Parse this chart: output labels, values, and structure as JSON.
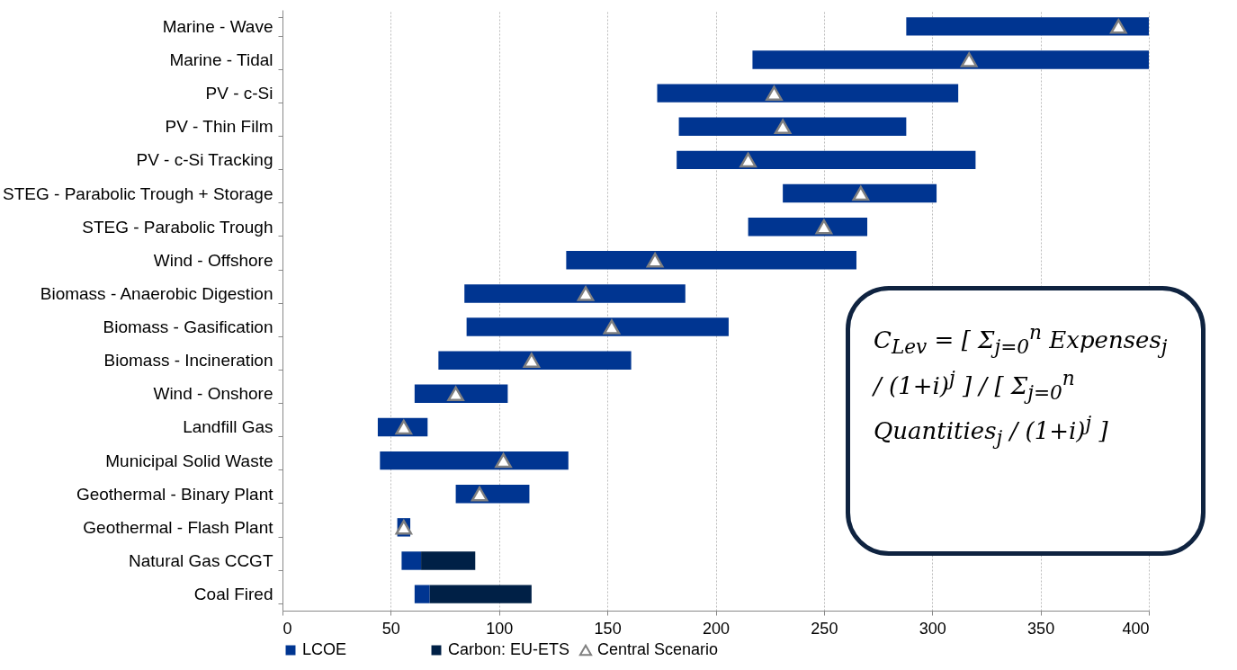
{
  "chart_data": {
    "type": "bar",
    "orientation": "horizontal",
    "categories": [
      "Marine - Wave",
      "Marine - Tidal",
      "PV - c-Si",
      "PV - Thin Film",
      "PV - c-Si Tracking",
      "STEG - Parabolic Trough + Storage",
      "STEG - Parabolic Trough",
      "Wind - Offshore",
      "Biomass - Anaerobic Digestion",
      "Biomass - Gasification",
      "Biomass - Incineration",
      "Wind - Onshore",
      "Landfill Gas",
      "Municipal Solid Waste",
      "Geothermal - Binary Plant",
      "Geothermal - Flash Plant",
      "Natural Gas CCGT",
      "Coal Fired"
    ],
    "series": [
      {
        "name": "LCOE",
        "color": "#003591",
        "base": [
          288,
          217,
          173,
          183,
          182,
          231,
          215,
          131,
          84,
          85,
          72,
          61,
          44,
          45,
          80,
          53,
          55,
          61
        ],
        "values": [
          112,
          183,
          139,
          105,
          138,
          71,
          55,
          134,
          102,
          121,
          89,
          43,
          23,
          87,
          34,
          6,
          9,
          7
        ]
      },
      {
        "name": "Carbon: EU-ETS",
        "color": "#002046",
        "base": [
          null,
          null,
          null,
          null,
          null,
          null,
          null,
          null,
          null,
          null,
          null,
          null,
          null,
          null,
          null,
          null,
          64,
          68
        ],
        "values": [
          null,
          null,
          null,
          null,
          null,
          null,
          null,
          null,
          null,
          null,
          null,
          null,
          null,
          null,
          null,
          null,
          25,
          47
        ]
      },
      {
        "name": "Central Scenario",
        "type": "scatter",
        "marker": "triangle",
        "color": "#808080",
        "x": [
          "Marine - Wave",
          "Marine - Tidal",
          "PV - c-Si",
          "PV - Thin Film",
          "PV - c-Si Tracking",
          "STEG - Parabolic Trough + Storage",
          "STEG - Parabolic Trough",
          "Wind - Offshore",
          "Biomass - Anaerobic Digestion",
          "Biomass - Gasification",
          "Biomass - Incineration",
          "Wind - Onshore",
          "Landfill Gas",
          "Municipal Solid Waste",
          "Geothermal - Binary Plant",
          "Geothermal - Flash Plant",
          "Natural Gas CCGT",
          "Coal Fired"
        ],
        "values": [
          386,
          317,
          227,
          231,
          215,
          267,
          250,
          172,
          140,
          152,
          115,
          80,
          56,
          102,
          91,
          56,
          null,
          null
        ]
      }
    ],
    "xlim": [
      0,
      400
    ],
    "xticks": [
      0,
      50,
      100,
      150,
      200,
      250,
      300,
      350,
      400
    ],
    "grid": "x",
    "legend": "bottom",
    "annotations": [
      "C$_{Lev}$ = [ Σ$_{j=0}$$^{n}$ Expenses$_{j}$ / (1+i)$^{j}$ ] / [ Σ$_{j=0}$$^{n}$ Quantities$_{j}$ / (1+i)$^{j}$ ]"
    ]
  }
}
